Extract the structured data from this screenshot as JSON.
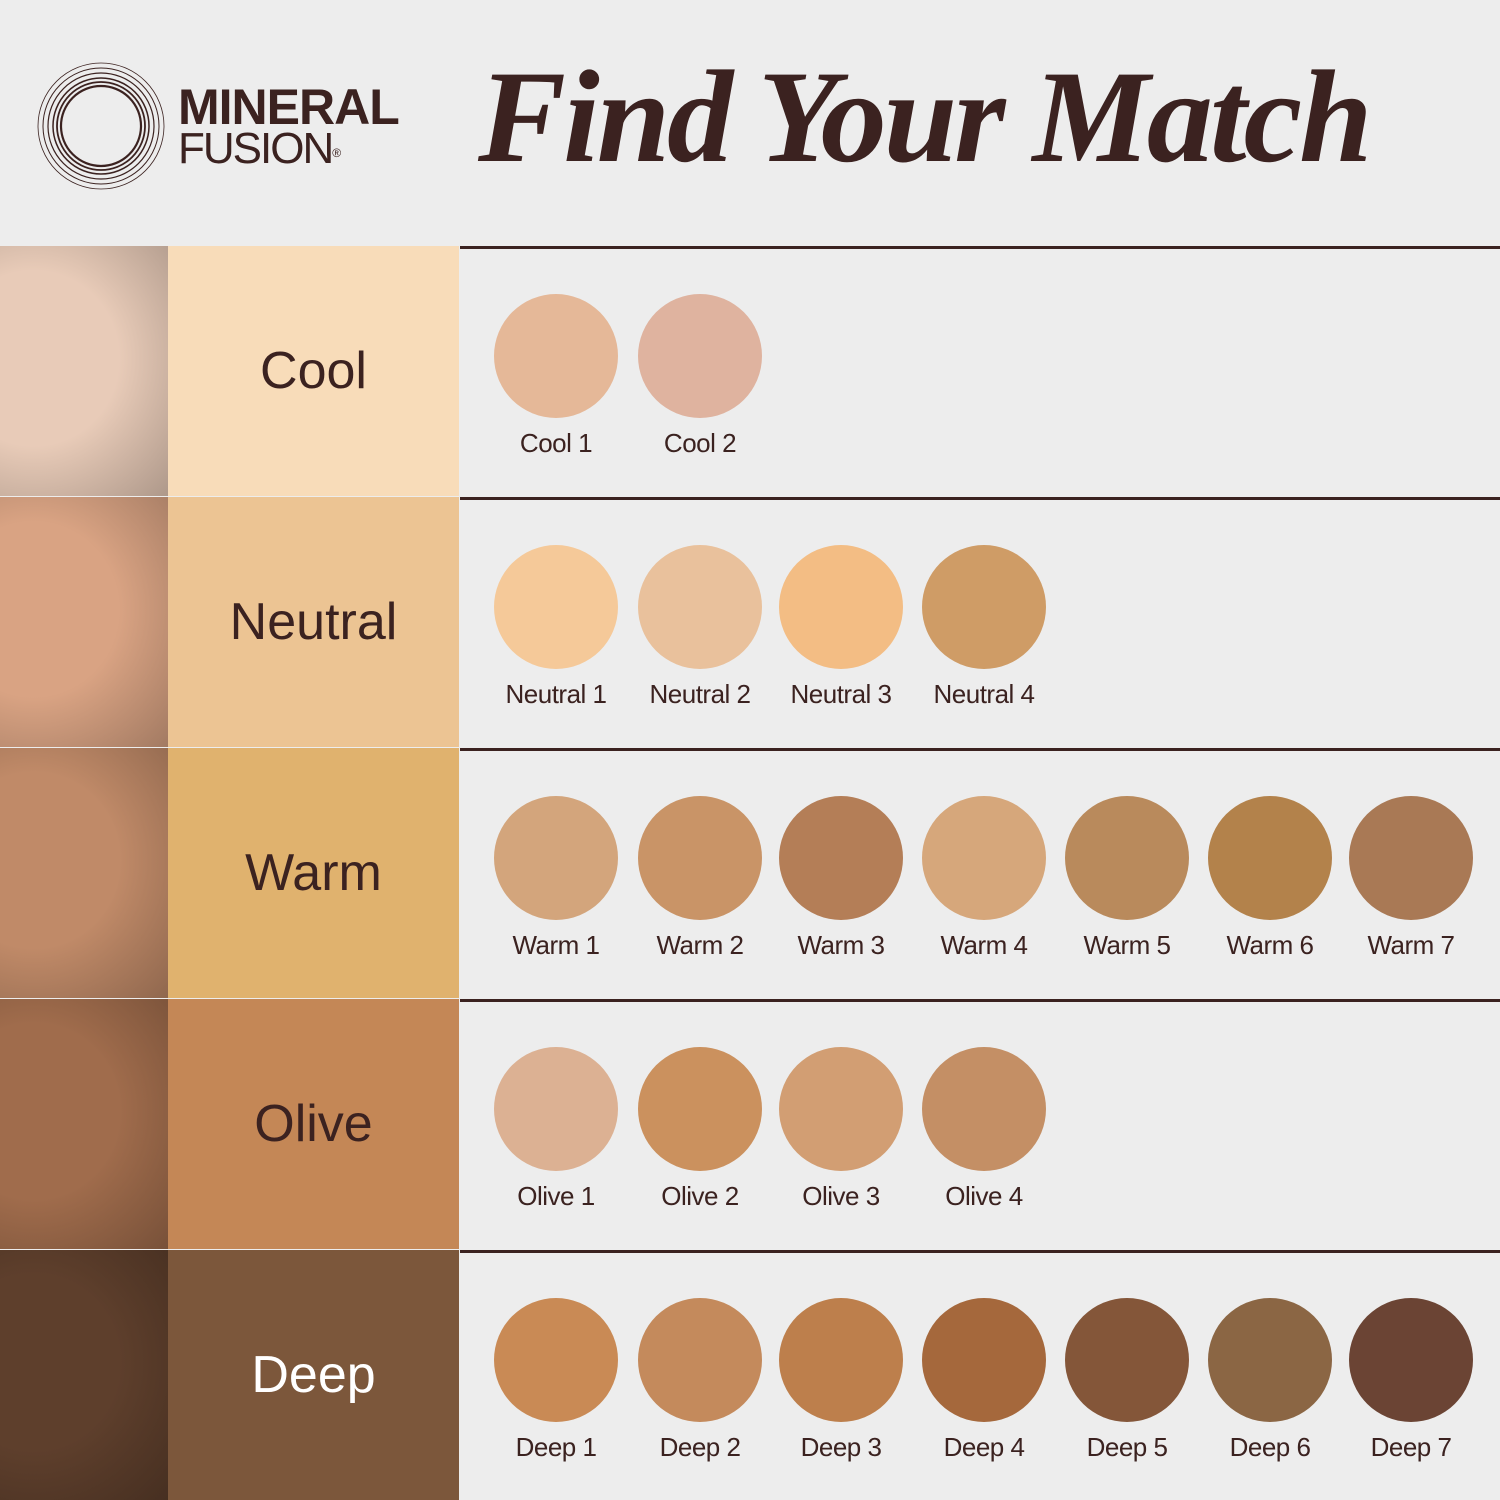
{
  "brand": {
    "line1": "MINERAL",
    "line2": "FUSION",
    "mark": "®"
  },
  "title": "Find Your Match",
  "rows": [
    {
      "label": "Cool",
      "panel_color": "#f8dcb9",
      "label_color": "#3b2220",
      "face_color": "#e8cbb8",
      "shades": [
        {
          "name": "Cool 1",
          "color": "#e5b898"
        },
        {
          "name": "Cool 2",
          "color": "#dfb39f"
        }
      ]
    },
    {
      "label": "Neutral",
      "panel_color": "#ecc493",
      "label_color": "#3b2220",
      "face_color": "#d9a383",
      "shades": [
        {
          "name": "Neutral 1",
          "color": "#f5c999"
        },
        {
          "name": "Neutral 2",
          "color": "#e9c19c"
        },
        {
          "name": "Neutral 3",
          "color": "#f3bd84"
        },
        {
          "name": "Neutral 4",
          "color": "#cf9c66"
        }
      ]
    },
    {
      "label": "Warm",
      "panel_color": "#e0b26e",
      "label_color": "#3b2220",
      "face_color": "#c08a68",
      "shades": [
        {
          "name": "Warm 1",
          "color": "#d3a57c"
        },
        {
          "name": "Warm 2",
          "color": "#c99467"
        },
        {
          "name": "Warm 3",
          "color": "#b47e57"
        },
        {
          "name": "Warm 4",
          "color": "#d6a77b"
        },
        {
          "name": "Warm 5",
          "color": "#b98a5c"
        },
        {
          "name": "Warm 6",
          "color": "#b3824b"
        },
        {
          "name": "Warm 7",
          "color": "#a97955"
        }
      ]
    },
    {
      "label": "Olive",
      "panel_color": "#c48756",
      "label_color": "#3b2220",
      "face_color": "#a06c4c",
      "shades": [
        {
          "name": "Olive 1",
          "color": "#dcb193"
        },
        {
          "name": "Olive 2",
          "color": "#cb915e"
        },
        {
          "name": "Olive 3",
          "color": "#d29e73"
        },
        {
          "name": "Olive 4",
          "color": "#c48f65"
        }
      ]
    },
    {
      "label": "Deep",
      "panel_color": "#7c573b",
      "label_color": "#ffffff",
      "face_color": "#5e3f2c",
      "shades": [
        {
          "name": "Deep 1",
          "color": "#c98a55"
        },
        {
          "name": "Deep 2",
          "color": "#c48a5c"
        },
        {
          "name": "Deep 3",
          "color": "#bd7f4c"
        },
        {
          "name": "Deep 4",
          "color": "#a5683c"
        },
        {
          "name": "Deep 5",
          "color": "#845639"
        },
        {
          "name": "Deep 6",
          "color": "#8b6644"
        },
        {
          "name": "Deep 7",
          "color": "#6b4434"
        }
      ]
    }
  ]
}
